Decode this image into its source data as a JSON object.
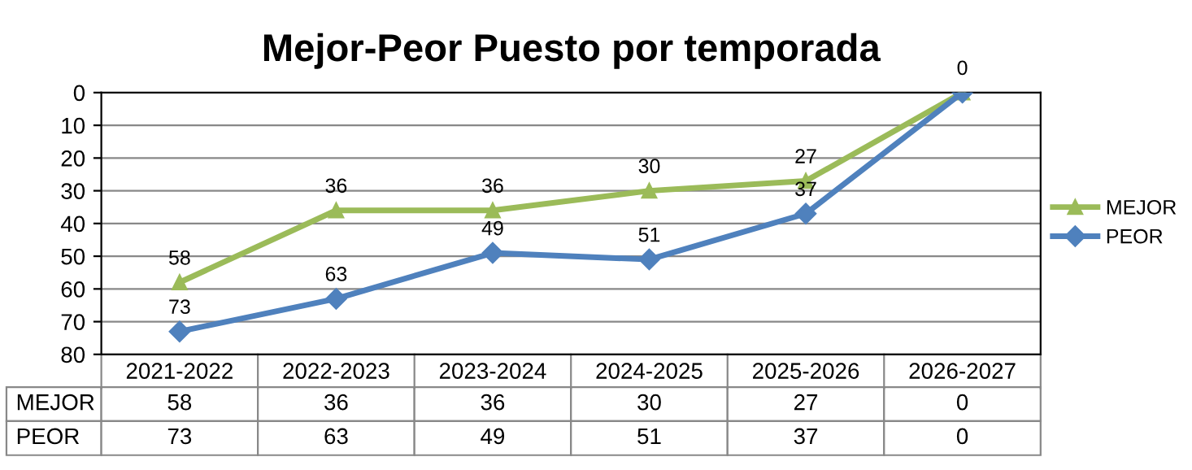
{
  "chart_data": {
    "type": "line",
    "title": "Mejor-Peor Puesto por temporada",
    "categories": [
      "2021-2022",
      "2022-2023",
      "2023-2024",
      "2024-2025",
      "2025-2026",
      "2026-2027"
    ],
    "series": [
      {
        "name": "MEJOR",
        "color": "#9bbb59",
        "marker": "triangle",
        "values": [
          58,
          36,
          36,
          30,
          27,
          0
        ]
      },
      {
        "name": "PEOR",
        "color": "#4f81bd",
        "marker": "diamond",
        "values": [
          73,
          63,
          49,
          51,
          37,
          0
        ]
      }
    ],
    "ylim": [
      80,
      0
    ],
    "yticks": [
      0,
      10,
      20,
      30,
      40,
      50,
      60,
      70,
      80
    ],
    "annotations": [
      {
        "text": "58",
        "x": "2021-2022",
        "y": 58
      },
      {
        "text": "36",
        "x": "2022-2023",
        "y": 36
      },
      {
        "text": "36",
        "x": "2023-2024",
        "y": 36
      },
      {
        "text": "30",
        "x": "2024-2025",
        "y": 30
      },
      {
        "text": "27",
        "x": "2025-2026",
        "y": 27
      },
      {
        "text": "0",
        "x": "2026-2027",
        "y": 0
      },
      {
        "text": "73",
        "x": "2021-2022",
        "y": 73
      },
      {
        "text": "63",
        "x": "2022-2023",
        "y": 63
      },
      {
        "text": "49",
        "x": "2023-2024",
        "y": 49
      },
      {
        "text": "51",
        "x": "2024-2025",
        "y": 51
      },
      {
        "text": "37",
        "x": "2025-2026",
        "y": 37
      }
    ],
    "grid": "y",
    "legend": "right",
    "data_labels": true,
    "line_style": "solid"
  }
}
